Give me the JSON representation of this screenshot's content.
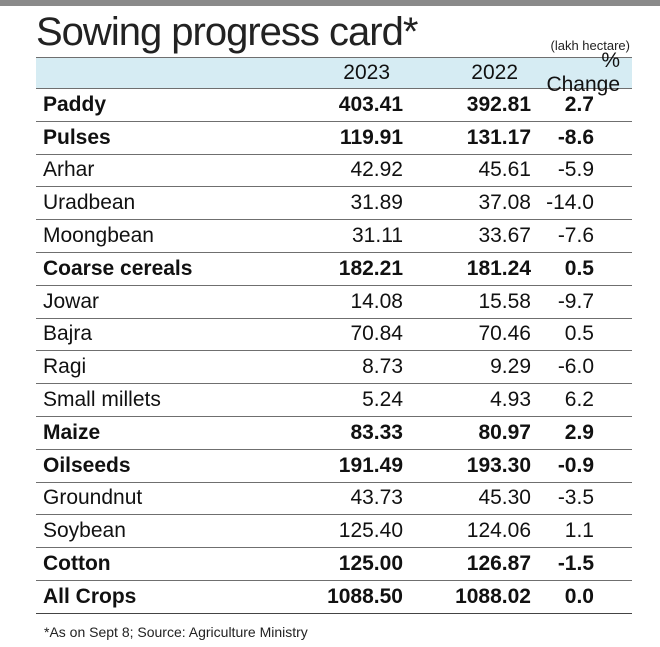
{
  "title": "Sowing progress card*",
  "unit_note": "(lakh hectare)",
  "columns": [
    "",
    "2023",
    "2022",
    "% Change"
  ],
  "rows": [
    {
      "crop": "Paddy",
      "y2023": "403.41",
      "y2022": "392.81",
      "change": "2.7",
      "bold": true
    },
    {
      "crop": "Pulses",
      "y2023": "119.91",
      "y2022": "131.17",
      "change": "-8.6",
      "bold": true
    },
    {
      "crop": "Arhar",
      "y2023": "42.92",
      "y2022": "45.61",
      "change": "-5.9",
      "bold": false
    },
    {
      "crop": "Uradbean",
      "y2023": "31.89",
      "y2022": "37.08",
      "change": "-14.0",
      "bold": false
    },
    {
      "crop": "Moongbean",
      "y2023": "31.11",
      "y2022": "33.67",
      "change": "-7.6",
      "bold": false
    },
    {
      "crop": "Coarse cereals",
      "y2023": "182.21",
      "y2022": "181.24",
      "change": "0.5",
      "bold": true
    },
    {
      "crop": "Jowar",
      "y2023": "14.08",
      "y2022": "15.58",
      "change": "-9.7",
      "bold": false
    },
    {
      "crop": "Bajra",
      "y2023": "70.84",
      "y2022": "70.46",
      "change": "0.5",
      "bold": false
    },
    {
      "crop": "Ragi",
      "y2023": "8.73",
      "y2022": "9.29",
      "change": "-6.0",
      "bold": false
    },
    {
      "crop": "Small millets",
      "y2023": "5.24",
      "y2022": "4.93",
      "change": "6.2",
      "bold": false
    },
    {
      "crop": "Maize",
      "y2023": "83.33",
      "y2022": "80.97",
      "change": "2.9",
      "bold": true
    },
    {
      "crop": "Oilseeds",
      "y2023": "191.49",
      "y2022": "193.30",
      "change": "-0.9",
      "bold": true
    },
    {
      "crop": "Groundnut",
      "y2023": "43.73",
      "y2022": "45.30",
      "change": "-3.5",
      "bold": false
    },
    {
      "crop": "Soybean",
      "y2023": "125.40",
      "y2022": "124.06",
      "change": "1.1",
      "bold": false
    },
    {
      "crop": "Cotton",
      "y2023": "125.00",
      "y2022": "126.87",
      "change": "-1.5",
      "bold": true
    },
    {
      "crop": "All Crops",
      "y2023": "1088.50",
      "y2022": "1088.02",
      "change": "0.0",
      "bold": true
    }
  ],
  "footnote": "*As on Sept 8; Source: Agriculture Ministry",
  "colors": {
    "header_bg": "#d6ecf3",
    "top_bar": "#8a8a8a"
  }
}
